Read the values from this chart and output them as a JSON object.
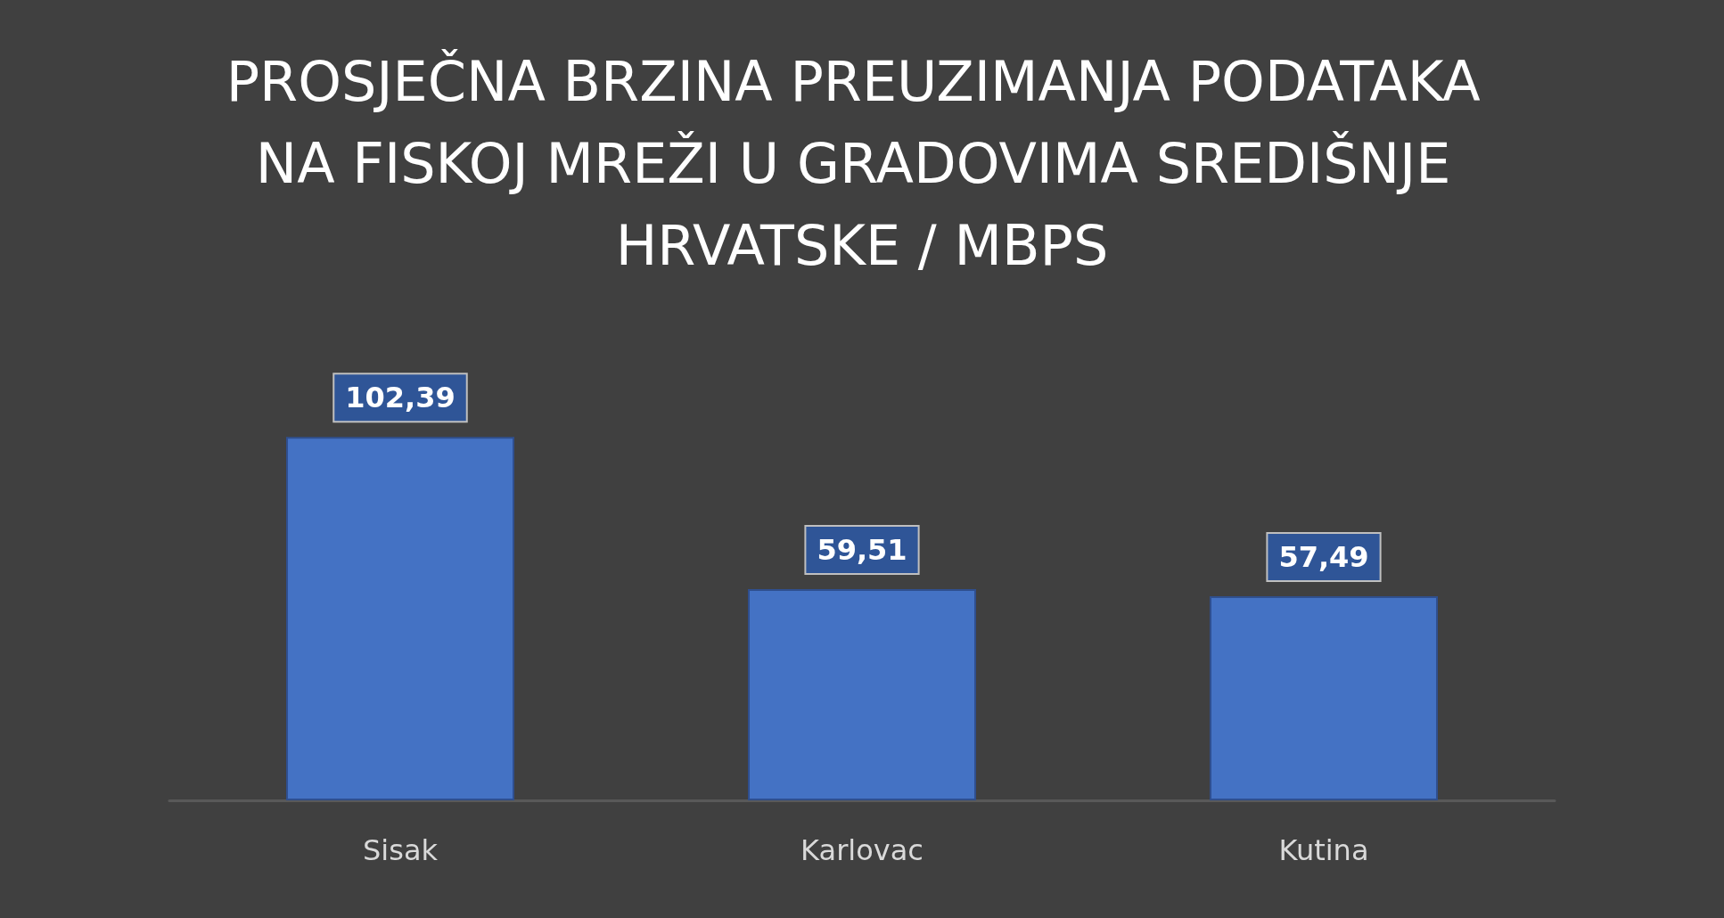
{
  "chart_data": {
    "type": "bar",
    "title": "PROSJEČNA BRZINA PREUZIMANJA PODATAKA NA FISKOJ MREŽI U GRADOVIMA SREDIŠNJE HRVATSKE / MBPS",
    "categories": [
      "Sisak",
      "Karlovac",
      "Kutina"
    ],
    "values": [
      102.39,
      59.51,
      57.49
    ],
    "value_labels": [
      "102,39",
      "59,51",
      "57,49"
    ],
    "color": "#4472c4"
  }
}
